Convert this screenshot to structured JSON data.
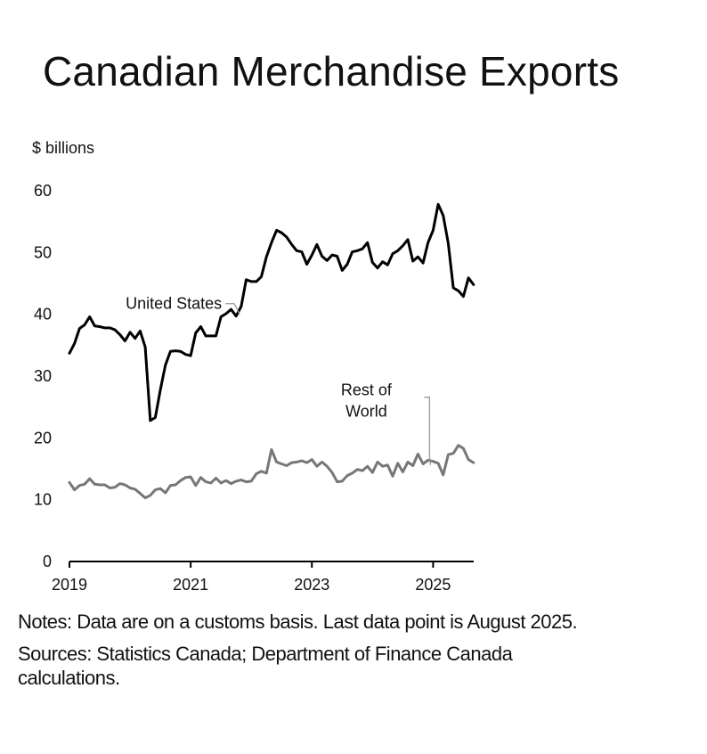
{
  "title": "Canadian Merchandise Exports",
  "notes": "Notes: Data are on a customs basis. Last data point is August 2025.",
  "sources": "Sources: Statistics Canada; Department of Finance Canada calculations.",
  "colors": {
    "united_states": "#000000",
    "rest_of_world": "#777777",
    "axis": "#000000",
    "text": "#111111"
  },
  "chart_data": {
    "type": "line",
    "ylabel": "$ billions",
    "xlabel": "",
    "ylim": [
      0,
      60
    ],
    "yticks": [
      0,
      10,
      20,
      30,
      40,
      50,
      60
    ],
    "xlim": [
      2019.0,
      2025.67
    ],
    "xticks": [
      2019,
      2021,
      2023,
      2025
    ],
    "x_tick_labels": [
      "2019",
      "2021",
      "2023",
      "2025"
    ],
    "grid": false,
    "legend": "none",
    "series": [
      {
        "name": "United States",
        "label_lines": [
          "United States"
        ],
        "label_anchor_index": 33,
        "values": [
          33.7,
          35.3,
          37.7,
          38.3,
          39.6,
          38.1,
          38.0,
          37.8,
          37.8,
          37.5,
          36.7,
          35.7,
          37.1,
          36.1,
          37.3,
          34.7,
          22.8,
          23.3,
          27.8,
          31.8,
          34.0,
          34.1,
          34.0,
          33.5,
          33.3,
          37.0,
          38.0,
          36.5,
          36.5,
          36.5,
          39.6,
          40.1,
          40.8,
          39.7,
          41.3,
          45.6,
          45.3,
          45.3,
          46.1,
          49.3,
          51.6,
          53.6,
          53.2,
          52.5,
          51.3,
          50.3,
          50.1,
          48.1,
          49.6,
          51.3,
          49.4,
          48.7,
          49.6,
          49.4,
          47.1,
          48.1,
          50.1,
          50.3,
          50.6,
          51.6,
          48.4,
          47.5,
          48.5,
          48.0,
          49.8,
          50.3,
          51.1,
          52.1,
          48.6,
          49.3,
          48.3,
          51.6,
          53.6,
          57.8,
          56.0,
          51.5,
          44.3,
          43.8,
          42.9,
          45.9,
          44.8
        ]
      },
      {
        "name": "Rest of World",
        "label_lines": [
          "Rest of",
          "World"
        ],
        "label_anchor_index": 72,
        "values": [
          12.8,
          11.6,
          12.3,
          12.5,
          13.4,
          12.5,
          12.4,
          12.4,
          11.9,
          12.0,
          12.6,
          12.4,
          11.9,
          11.7,
          11.0,
          10.3,
          10.7,
          11.6,
          11.8,
          11.1,
          12.3,
          12.4,
          13.1,
          13.6,
          13.7,
          12.3,
          13.6,
          12.9,
          12.7,
          13.5,
          12.7,
          13.1,
          12.6,
          13.0,
          13.2,
          12.9,
          13.0,
          14.2,
          14.6,
          14.3,
          18.1,
          16.1,
          15.8,
          15.5,
          16.0,
          16.1,
          16.3,
          16.0,
          16.5,
          15.4,
          16.1,
          15.4,
          14.4,
          12.9,
          13.0,
          13.9,
          14.3,
          14.9,
          14.7,
          15.4,
          14.4,
          16.1,
          15.4,
          15.6,
          13.8,
          15.9,
          14.5,
          16.1,
          15.5,
          17.4,
          15.8,
          16.4,
          16.2,
          15.9,
          14.0,
          17.3,
          17.5,
          18.8,
          18.3,
          16.5,
          16.0
        ]
      }
    ]
  }
}
